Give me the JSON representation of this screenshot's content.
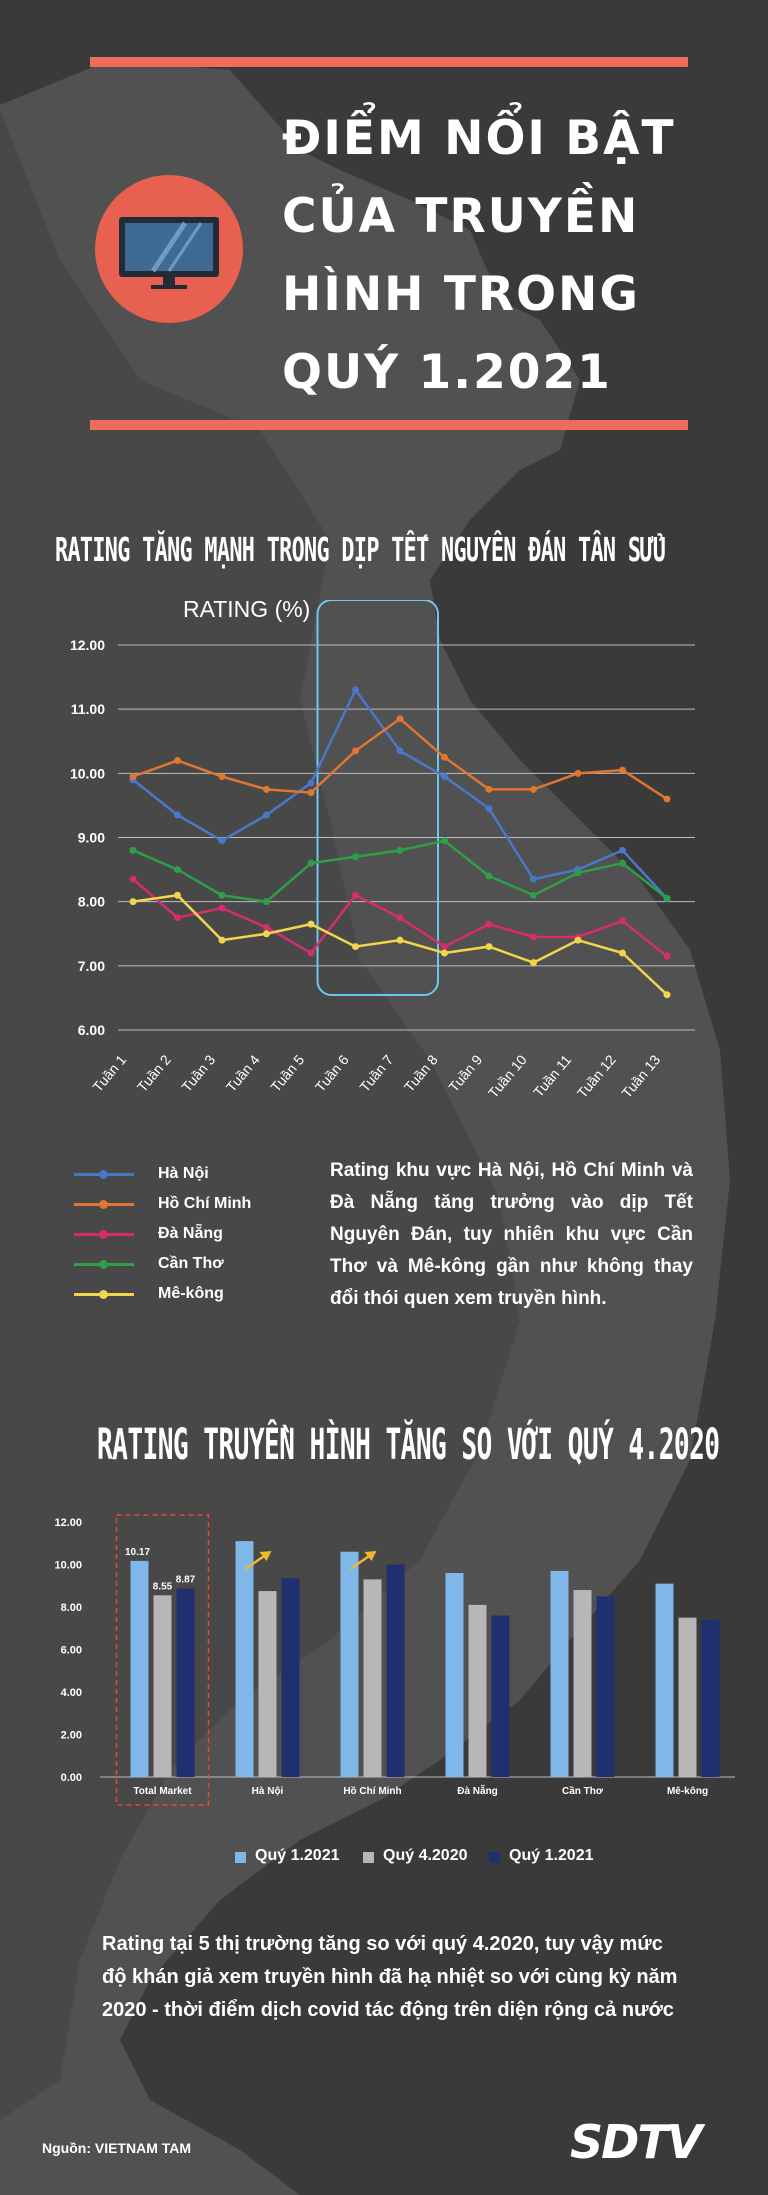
{
  "header": {
    "title_lines": [
      "ĐIỂM NỔI BẬT",
      "CỦA TRUYỀN",
      "HÌNH TRONG",
      "QUÝ 1.2021"
    ]
  },
  "section1": {
    "title": "RATING TĂNG MẠNH TRONG DỊP TẾT NGUYÊN ĐÁN TÂN SỬU",
    "axis_label": "RATING (%)",
    "paragraph": "Rating khu vực Hà Nội, Hồ Chí Minh và Đà Nẵng tăng trưởng vào dịp Tết Nguyên Đán, tuy nhiên khu vực Cần Thơ và Mê-kông gần như không thay đổi thói quen xem truyền hình."
  },
  "section2": {
    "title": "RATING TRUYỀN HÌNH TĂNG SO VỚI QUÝ 4.2020",
    "paragraph": "Rating tại 5 thị trường tăng so với quý 4.2020, tuy vậy mức độ khán giả xem truyền hình đã hạ nhiệt so với cùng kỳ năm 2020 - thời điểm dịch covid tác động trên diện rộng cả nước"
  },
  "footer": {
    "source": "Nguồn: VIETNAM TAM",
    "logo": "SDTV"
  },
  "colors": {
    "background": "#3a3a3a",
    "accent": "#ef6b5e",
    "hanoi": "#4a78c8",
    "hcm": "#e0762f",
    "danang": "#d72d6e",
    "cantho": "#2e9e48",
    "mekong": "#f1d54b",
    "q1_2021_light": "#7eb7e8",
    "q4_2020": "#b7b7b7",
    "q1_2021_dark": "#1f2f6f",
    "highlight_box": "#6cc9ea"
  },
  "chart_data": [
    {
      "type": "line",
      "title": "RATING TĂNG MẠNH TRONG DỊP TẾT NGUYÊN ĐÁN TÂN SỬU",
      "ylabel": "RATING (%)",
      "xlabel": "",
      "ylim": [
        6.0,
        12.0
      ],
      "yticks": [
        "6.00",
        "7.00",
        "8.00",
        "9.00",
        "10.00",
        "11.00",
        "12.00"
      ],
      "grid": true,
      "categories": [
        "Tuần 1",
        "Tuần 2",
        "Tuần 3",
        "Tuần 4",
        "Tuần 5",
        "Tuần 6",
        "Tuần 7",
        "Tuần 8",
        "Tuần 9",
        "Tuần 10",
        "Tuần 11",
        "Tuần 12",
        "Tuần 13"
      ],
      "highlight_weeks": [
        "Tuần 6",
        "Tuần 7"
      ],
      "series": [
        {
          "name": "Hà Nội",
          "color": "#4a78c8",
          "values": [
            9.9,
            9.35,
            8.95,
            9.35,
            9.85,
            11.3,
            10.35,
            9.95,
            9.45,
            8.35,
            8.5,
            8.8,
            8.05
          ]
        },
        {
          "name": "Hồ Chí Minh",
          "color": "#e0762f",
          "values": [
            9.95,
            10.2,
            9.95,
            9.75,
            9.7,
            10.35,
            10.85,
            10.25,
            9.75,
            9.75,
            10.0,
            10.05,
            9.6
          ]
        },
        {
          "name": "Đà Nẵng",
          "color": "#d72d6e",
          "values": [
            8.35,
            7.75,
            7.9,
            7.6,
            7.2,
            8.1,
            7.75,
            7.3,
            7.65,
            7.45,
            7.45,
            7.7,
            7.15
          ]
        },
        {
          "name": "Cần Thơ",
          "color": "#2e9e48",
          "values": [
            8.8,
            8.5,
            8.1,
            8.0,
            8.6,
            8.7,
            8.8,
            8.95,
            8.4,
            8.1,
            8.45,
            8.6,
            8.05
          ]
        },
        {
          "name": "Mê-kông",
          "color": "#f1d54b",
          "values": [
            8.0,
            8.1,
            7.4,
            7.5,
            7.65,
            7.3,
            7.4,
            7.2,
            7.3,
            7.05,
            7.4,
            7.2,
            6.55
          ]
        }
      ],
      "legend": "bottom-left"
    },
    {
      "type": "bar",
      "title": "RATING TRUYỀN HÌNH TĂNG SO VỚI QUÝ 4.2020",
      "ylim": [
        0,
        12
      ],
      "yticks": [
        "0.00",
        "2.00",
        "4.00",
        "6.00",
        "8.00",
        "10.00",
        "12.00"
      ],
      "grid": false,
      "categories": [
        "Total Market",
        "Hà Nội",
        "Hồ Chí Minh",
        "Đà Nẵng",
        "Cần Thơ",
        "Mê-kông"
      ],
      "highlight_category": "Total Market",
      "series": [
        {
          "name": "Quý 1.2021",
          "color": "#7eb7e8",
          "values": [
            10.17,
            11.1,
            10.6,
            9.6,
            9.7,
            9.1
          ]
        },
        {
          "name": "Quý 4.2020",
          "color": "#b7b7b7",
          "values": [
            8.55,
            8.75,
            9.3,
            8.1,
            8.8,
            7.5
          ]
        },
        {
          "name": "Quý 1.2021",
          "color": "#1f2f6f",
          "values": [
            8.87,
            9.35,
            10.0,
            7.6,
            8.5,
            7.4
          ]
        }
      ],
      "data_labels": {
        "Total Market": [
          "10.17",
          "8.55",
          "8.87"
        ]
      },
      "legend": "bottom-center"
    }
  ]
}
